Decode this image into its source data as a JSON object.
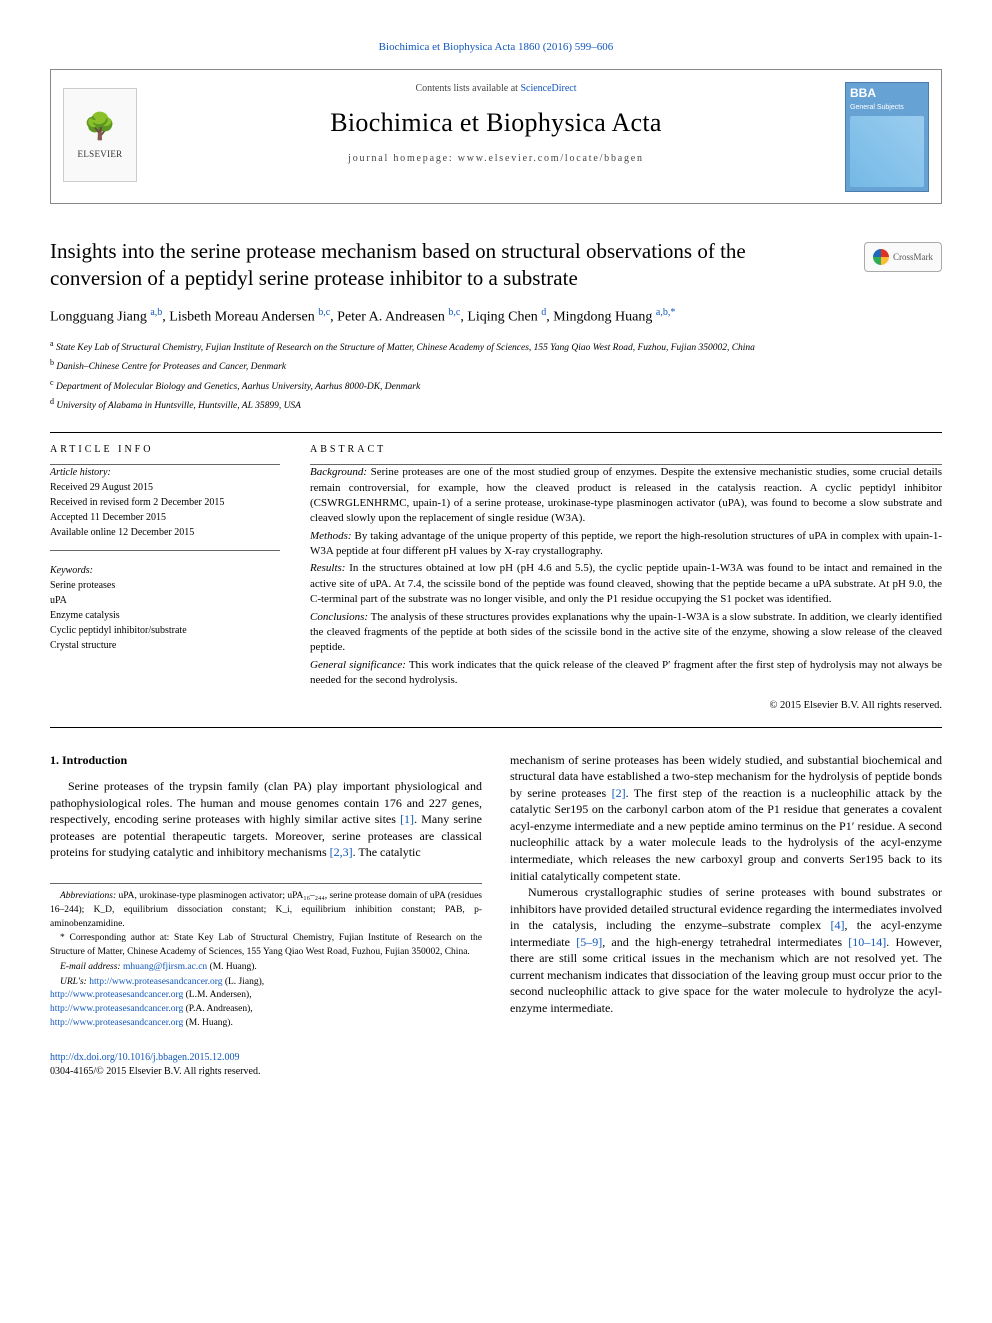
{
  "header": {
    "top_link": "Biochimica et Biophysica Acta 1860 (2016) 599–606",
    "contents_prefix": "Contents lists available at ",
    "contents_link": "ScienceDirect",
    "journal_name": "Biochimica et Biophysica Acta",
    "homepage_prefix": "journal homepage: ",
    "homepage_url": "www.elsevier.com/locate/bbagen",
    "elsevier": "ELSEVIER",
    "bba_cover_title": "BBA",
    "bba_cover_sub": "General Subjects"
  },
  "crossmark": "CrossMark",
  "title": "Insights into the serine protease mechanism based on structural observations of the conversion of a peptidyl serine protease inhibitor to a substrate",
  "authors_html": "Longguang Jiang <sup>a,b</sup>, Lisbeth Moreau Andersen <sup>b,c</sup>, Peter A. Andreasen <sup>b,c</sup>, Liqing Chen <sup>d</sup>, Mingdong Huang <sup>a,b,*</sup>",
  "affiliations": [
    {
      "sup": "a",
      "text": "State Key Lab of Structural Chemistry, Fujian Institute of Research on the Structure of Matter, Chinese Academy of Sciences, 155 Yang Qiao West Road, Fuzhou, Fujian 350002, China"
    },
    {
      "sup": "b",
      "text": "Danish–Chinese Centre for Proteases and Cancer, Denmark"
    },
    {
      "sup": "c",
      "text": "Department of Molecular Biology and Genetics, Aarhus University, Aarhus 8000-DK, Denmark"
    },
    {
      "sup": "d",
      "text": "University of Alabama in Huntsville, Huntsville, AL 35899, USA"
    }
  ],
  "article_info": {
    "heading": "ARTICLE INFO",
    "history_label": "Article history:",
    "history": [
      "Received 29 August 2015",
      "Received in revised form 2 December 2015",
      "Accepted 11 December 2015",
      "Available online 12 December 2015"
    ],
    "keywords_label": "Keywords:",
    "keywords": [
      "Serine proteases",
      "uPA",
      "Enzyme catalysis",
      "Cyclic peptidyl inhibitor/substrate",
      "Crystal structure"
    ]
  },
  "abstract": {
    "heading": "ABSTRACT",
    "sections": [
      {
        "label": "Background:",
        "text": " Serine proteases are one of the most studied group of enzymes. Despite the extensive mechanistic studies, some crucial details remain controversial, for example, how the cleaved product is released in the catalysis reaction. A cyclic peptidyl inhibitor (CSWRGLENHRMC, upain-1) of a serine protease, urokinase-type plasminogen activator (uPA), was found to become a slow substrate and cleaved slowly upon the replacement of single residue (W3A)."
      },
      {
        "label": "Methods:",
        "text": " By taking advantage of the unique property of this peptide, we report the high-resolution structures of uPA in complex with upain-1-W3A peptide at four different pH values by X-ray crystallography."
      },
      {
        "label": "Results:",
        "text": " In the structures obtained at low pH (pH 4.6 and 5.5), the cyclic peptide upain-1-W3A was found to be intact and remained in the active site of uPA. At 7.4, the scissile bond of the peptide was found cleaved, showing that the peptide became a uPA substrate. At pH 9.0, the C-terminal part of the substrate was no longer visible, and only the P1 residue occupying the S1 pocket was identified."
      },
      {
        "label": "Conclusions:",
        "text": " The analysis of these structures provides explanations why the upain-1-W3A is a slow substrate. In addition, we clearly identified the cleaved fragments of the peptide at both sides of the scissile bond in the active site of the enzyme, showing a slow release of the cleaved peptide."
      },
      {
        "label": "General significance:",
        "text": " This work indicates that the quick release of the cleaved P′ fragment after the first step of hydrolysis may not always be needed for the second hydrolysis."
      }
    ],
    "copyright": "© 2015 Elsevier B.V. All rights reserved."
  },
  "intro": {
    "heading": "1. Introduction",
    "col1_p1_a": "Serine proteases of the trypsin family (clan PA) play important physiological and pathophysiological roles. The human and mouse genomes contain 176 and 227 genes, respectively, encoding serine proteases with highly similar active sites ",
    "col1_cite1": "[1]",
    "col1_p1_b": ". Many serine proteases are potential therapeutic targets. Moreover, serine proteases are classical proteins for studying catalytic and inhibitory mechanisms ",
    "col1_cite2": "[2,3]",
    "col1_p1_c": ". The catalytic",
    "col2_p1_a": "mechanism of serine proteases has been widely studied, and substantial biochemical and structural data have established a two-step mechanism for the hydrolysis of peptide bonds by serine proteases ",
    "col2_cite1": "[2]",
    "col2_p1_b": ". The first step of the reaction is a nucleophilic attack by the catalytic Ser195 on the carbonyl carbon atom of the P1 residue that generates a covalent acyl-enzyme intermediate and a new peptide amino terminus on the P1′ residue. A second nucleophilic attack by a water molecule leads to the hydrolysis of the acyl-enzyme intermediate, which releases the new carboxyl group and converts Ser195 back to its initial catalytically competent state.",
    "col2_p2_a": "Numerous crystallographic studies of serine proteases with bound substrates or inhibitors have provided detailed structural evidence regarding the intermediates involved in the catalysis, including the enzyme–substrate complex ",
    "col2_cite2": "[4]",
    "col2_p2_b": ", the acyl-enzyme intermediate ",
    "col2_cite3": "[5–9]",
    "col2_p2_c": ", and the high-energy tetrahedral intermediates ",
    "col2_cite4": "[10–14]",
    "col2_p2_d": ". However, there are still some critical issues in the mechanism which are not resolved yet. The current mechanism indicates that dissociation of the leaving group must occur prior to the second nucleophilic attack to give space for the water molecule to hydrolyze the acyl-enzyme intermediate."
  },
  "footnotes": {
    "abbrev_label": "Abbreviations:",
    "abbrev_text": " uPA, urokinase-type plasminogen activator; uPA₁₆–₂₄₄, serine protease domain of uPA (residues 16–244); K_D, equilibrium dissociation constant; K_i, equilibrium inhibition constant; PAB, p-aminobenzamidine.",
    "corr_mark": "*",
    "corr_text": " Corresponding author at: State Key Lab of Structural Chemistry, Fujian Institute of Research on the Structure of Matter, Chinese Academy of Sciences, 155 Yang Qiao West Road, Fuzhou, Fujian 350002, China.",
    "email_label": "E-mail address:",
    "email": " mhuang@fjirsm.ac.cn",
    "email_who": " (M. Huang).",
    "urls_label": "URL's:",
    "urls": [
      {
        "url": "http://www.proteasesandcancer.org",
        "who": " (L. Jiang),"
      },
      {
        "url": "http://www.proteasesandcancer.org",
        "who": " (L.M. Andersen),"
      },
      {
        "url": "http://www.proteasesandcancer.org",
        "who": " (P.A. Andreasen),"
      },
      {
        "url": "http://www.proteasesandcancer.org",
        "who": " (M. Huang)."
      }
    ]
  },
  "doi": {
    "url": "http://dx.doi.org/10.1016/j.bbagen.2015.12.009",
    "issn_line": "0304-4165/© 2015 Elsevier B.V. All rights reserved."
  },
  "colors": {
    "link": "#1157bb",
    "text": "#000000",
    "rule": "#000000",
    "cover_bg": "#67a2d4"
  }
}
